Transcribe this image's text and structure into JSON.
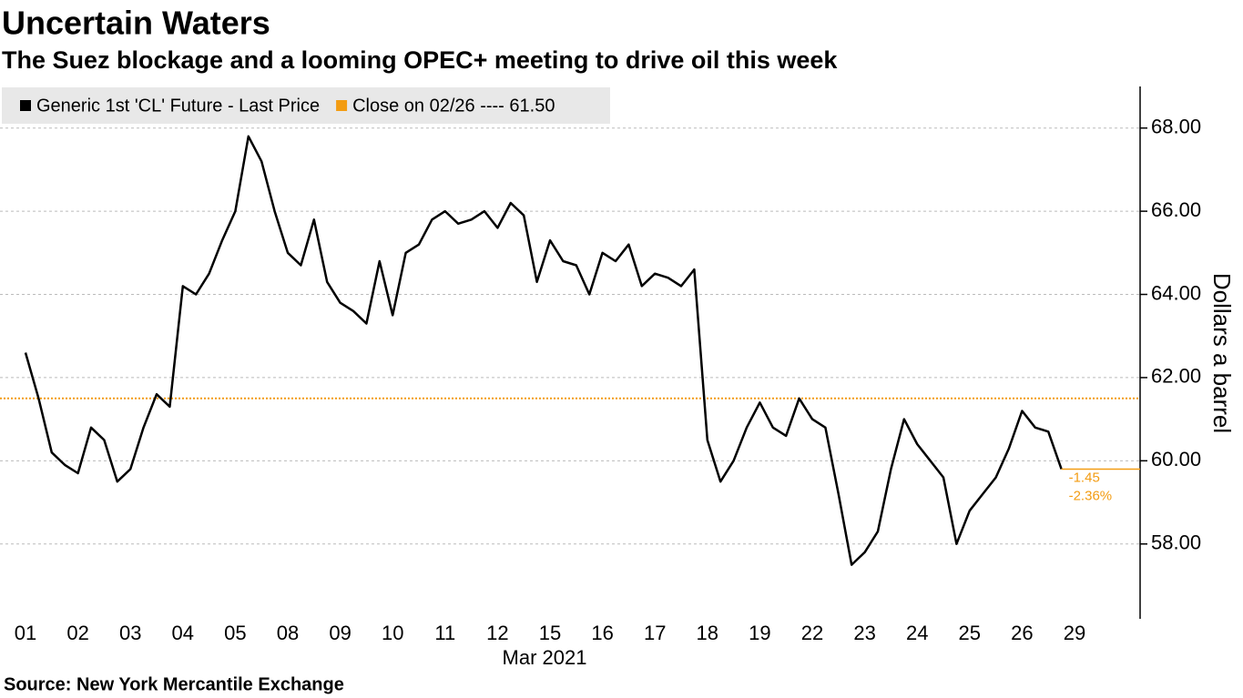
{
  "chart_data": {
    "type": "line",
    "title": "Uncertain Waters",
    "subtitle": "The Suez blockage and a looming OPEC+ meeting to drive oil this week",
    "source": "Source: New York Mercantile Exchange",
    "x_sublabel": "Mar 2021",
    "y_axis_label": "Dollars a barrel",
    "categories": [
      "01",
      null,
      null,
      null,
      "02",
      null,
      null,
      null,
      "03",
      null,
      null,
      null,
      "04",
      null,
      null,
      null,
      "05",
      null,
      null,
      null,
      "08",
      null,
      null,
      null,
      "09",
      null,
      null,
      null,
      "10",
      null,
      null,
      null,
      "11",
      null,
      null,
      null,
      "12",
      null,
      null,
      null,
      "15",
      null,
      null,
      null,
      "16",
      null,
      null,
      null,
      "17",
      null,
      null,
      null,
      "18",
      null,
      null,
      null,
      "19",
      null,
      null,
      null,
      "22",
      null,
      null,
      null,
      "23",
      null,
      null,
      null,
      "24",
      null,
      null,
      null,
      "25",
      null,
      null,
      null,
      "26",
      null,
      null,
      null,
      "29"
    ],
    "series": [
      {
        "name": "Generic 1st 'CL' Future - Last Price",
        "color": "#000000",
        "values": [
          62.6,
          61.5,
          60.2,
          59.9,
          59.7,
          60.8,
          60.5,
          59.5,
          59.8,
          60.8,
          61.6,
          61.3,
          64.2,
          64.0,
          64.5,
          65.3,
          66.0,
          67.8,
          67.2,
          66.0,
          65.0,
          64.7,
          65.8,
          64.3,
          63.8,
          63.6,
          63.3,
          64.8,
          63.5,
          65.0,
          65.2,
          65.8,
          66.0,
          65.7,
          65.8,
          66.0,
          65.6,
          66.2,
          65.9,
          64.3,
          65.3,
          64.8,
          64.7,
          64.0,
          65.0,
          64.8,
          65.2,
          64.2,
          64.5,
          64.4,
          64.2,
          64.6,
          60.5,
          59.5,
          60.0,
          60.8,
          61.4,
          60.8,
          60.6,
          61.5,
          61.0,
          60.8,
          59.2,
          57.5,
          57.8,
          58.3,
          59.8,
          61.0,
          60.4,
          60.0,
          59.6,
          58.0,
          58.8,
          59.2,
          59.6,
          60.3,
          61.2,
          60.8,
          60.7,
          59.8,
          null
        ]
      }
    ],
    "reference_line": {
      "name": "Close on 02/26 ---- 61.50",
      "value": 61.5,
      "color": "#f39c12"
    },
    "annotations": [
      "-1.45",
      "-2.36%"
    ],
    "ylim": [
      56.2,
      69.0
    ],
    "yticks": [
      {
        "value": 58,
        "label": "58.00"
      },
      {
        "value": 60,
        "label": "60.00"
      },
      {
        "value": 62,
        "label": "62.00"
      },
      {
        "value": 64,
        "label": "64.00"
      },
      {
        "value": 66,
        "label": "66.00"
      },
      {
        "value": 68,
        "label": "68.00"
      }
    ],
    "grid": true
  }
}
